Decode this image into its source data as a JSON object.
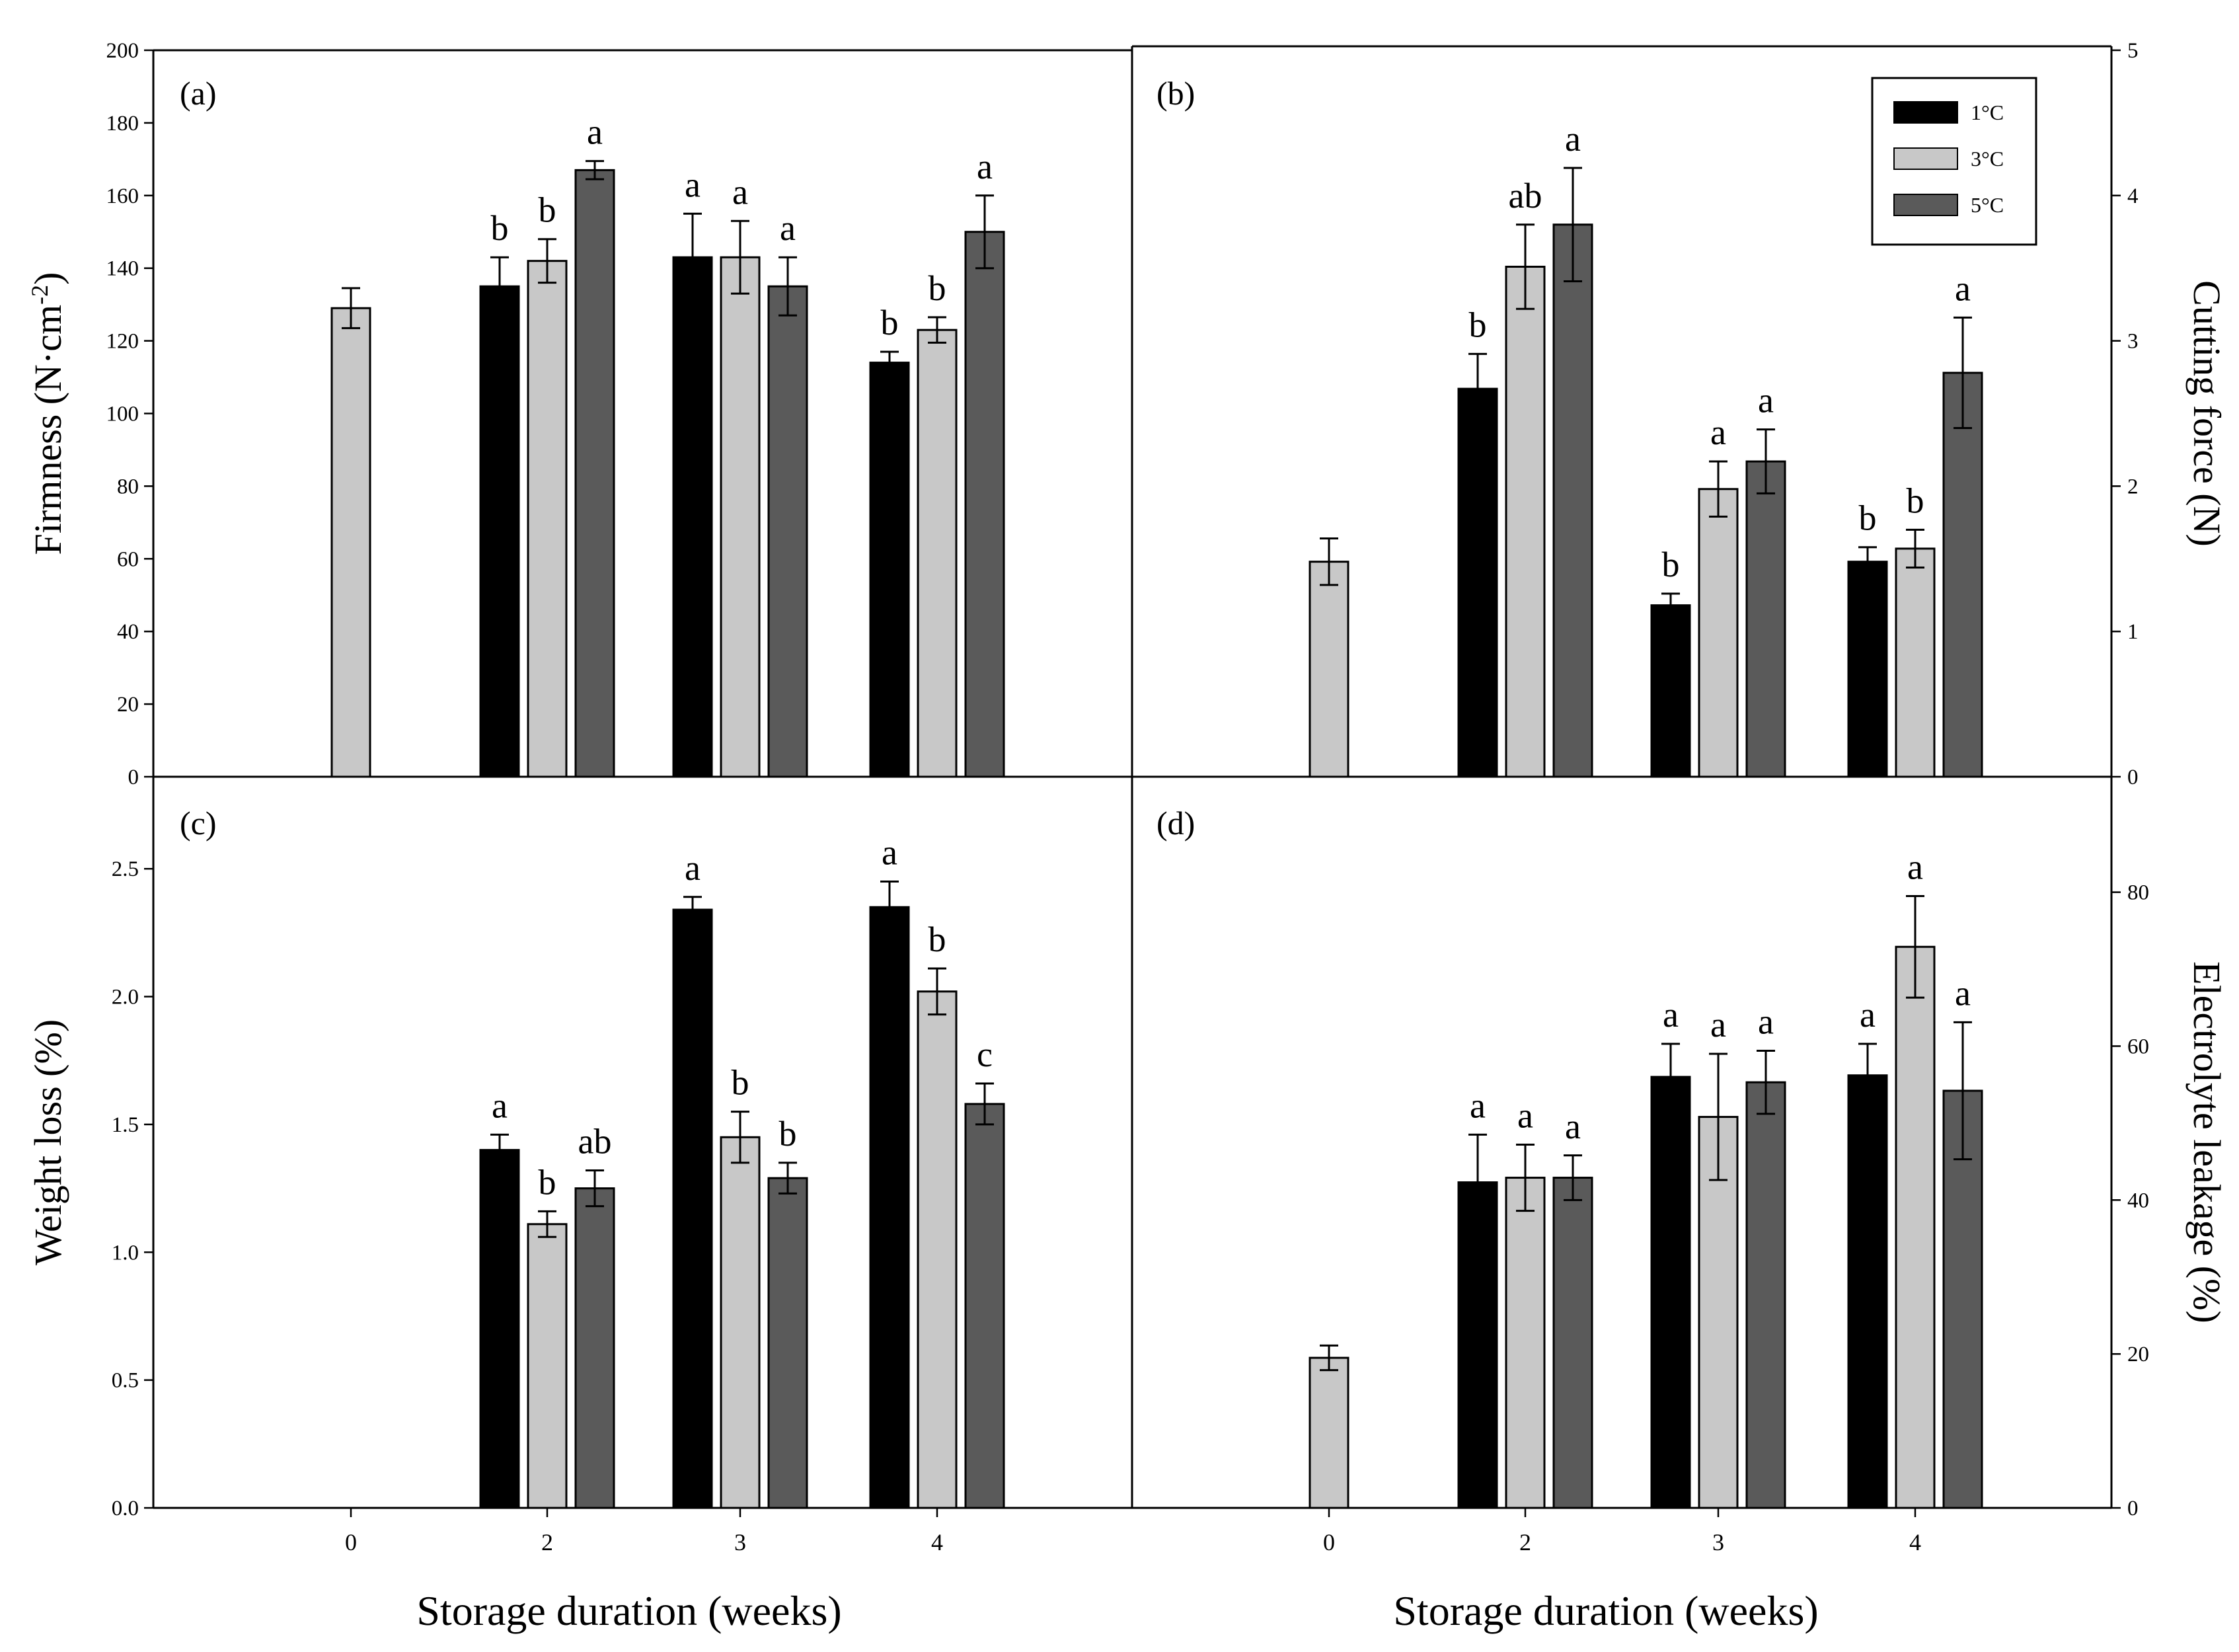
{
  "chart_data": {
    "type": "bar",
    "layout": "2x2 grid of grouped bar charts with error bars",
    "legend": {
      "placement": "top-right of panel (b)",
      "entries": [
        {
          "name": "1°C",
          "color": "#000000"
        },
        {
          "name": "3°C",
          "color": "#c8c8c8"
        },
        {
          "name": "5°C",
          "color": "#5a5a5a"
        }
      ]
    },
    "xlabel_bottom_left": "Storage duration (weeks)",
    "xlabel_bottom_right": "Storage duration (weeks)",
    "categories": [
      "0",
      "2",
      "3",
      "4"
    ],
    "panels": [
      {
        "id": "a",
        "label": "(a)",
        "ylabel": "Firmness (N·cm⁻²)",
        "ylabel_text": "Firmness (N·cm",
        "ylabel_sup": "-2",
        "ylabel_close": ")",
        "axis_side": "left",
        "ylim": [
          0,
          200
        ],
        "yticks": [
          {
            "value": 0,
            "label": "0"
          },
          {
            "value": 20,
            "label": "20"
          },
          {
            "value": 40,
            "label": "40"
          },
          {
            "value": 60,
            "label": "60"
          },
          {
            "value": 80,
            "label": "80"
          },
          {
            "value": 100,
            "label": "100"
          },
          {
            "value": 120,
            "label": "120"
          },
          {
            "value": 140,
            "label": "140"
          },
          {
            "value": 160,
            "label": "160"
          },
          {
            "value": 180,
            "label": "180"
          },
          {
            "value": 200,
            "label": "200"
          }
        ],
        "bars": [
          {
            "week": "0",
            "series": "3°C",
            "value": 129,
            "error": 5.5,
            "letter": ""
          },
          {
            "week": "2",
            "series": "1°C",
            "value": 135,
            "error": 8,
            "letter": "b"
          },
          {
            "week": "2",
            "series": "3°C",
            "value": 142,
            "error": 6,
            "letter": "b"
          },
          {
            "week": "2",
            "series": "5°C",
            "value": 167,
            "error": 2.5,
            "letter": "a"
          },
          {
            "week": "3",
            "series": "1°C",
            "value": 143,
            "error": 12,
            "letter": "a"
          },
          {
            "week": "3",
            "series": "3°C",
            "value": 143,
            "error": 10,
            "letter": "a"
          },
          {
            "week": "3",
            "series": "5°C",
            "value": 135,
            "error": 8,
            "letter": "a"
          },
          {
            "week": "4",
            "series": "1°C",
            "value": 114,
            "error": 3,
            "letter": "b"
          },
          {
            "week": "4",
            "series": "3°C",
            "value": 123,
            "error": 3.5,
            "letter": "b"
          },
          {
            "week": "4",
            "series": "5°C",
            "value": 150,
            "error": 10,
            "letter": "a"
          }
        ]
      },
      {
        "id": "b",
        "label": "(b)",
        "ylabel": "Cutting force (N)",
        "axis_side": "right",
        "ylim": [
          0,
          5
        ],
        "yticks": [
          {
            "value": 0,
            "label": "0"
          },
          {
            "value": 1,
            "label": "1"
          },
          {
            "value": 2,
            "label": "2"
          },
          {
            "value": 3,
            "label": "3"
          },
          {
            "value": 4,
            "label": "4"
          },
          {
            "value": 5,
            "label": "5"
          }
        ],
        "bars": [
          {
            "week": "0",
            "series": "3°C",
            "value": 1.48,
            "error": 0.16,
            "letter": ""
          },
          {
            "week": "2",
            "series": "1°C",
            "value": 2.67,
            "error": 0.24,
            "letter": "b"
          },
          {
            "week": "2",
            "series": "3°C",
            "value": 3.51,
            "error": 0.29,
            "letter": "ab"
          },
          {
            "week": "2",
            "series": "5°C",
            "value": 3.8,
            "error": 0.39,
            "letter": "a"
          },
          {
            "week": "3",
            "series": "1°C",
            "value": 1.18,
            "error": 0.08,
            "letter": "b"
          },
          {
            "week": "3",
            "series": "3°C",
            "value": 1.98,
            "error": 0.19,
            "letter": "a"
          },
          {
            "week": "3",
            "series": "5°C",
            "value": 2.17,
            "error": 0.22,
            "letter": "a"
          },
          {
            "week": "4",
            "series": "1°C",
            "value": 1.48,
            "error": 0.1,
            "letter": "b"
          },
          {
            "week": "4",
            "series": "3°C",
            "value": 1.57,
            "error": 0.13,
            "letter": "b"
          },
          {
            "week": "4",
            "series": "5°C",
            "value": 2.78,
            "error": 0.38,
            "letter": "a"
          }
        ]
      },
      {
        "id": "c",
        "label": "(c)",
        "ylabel": "Weight loss (%)",
        "axis_side": "left",
        "ylim": [
          0,
          2.86
        ],
        "yticks": [
          {
            "value": 0,
            "label": "0.0"
          },
          {
            "value": 0.5,
            "label": "0.5"
          },
          {
            "value": 1.0,
            "label": "1.0"
          },
          {
            "value": 1.5,
            "label": "1.5"
          },
          {
            "value": 2.0,
            "label": "2.0"
          },
          {
            "value": 2.5,
            "label": "2.5"
          }
        ],
        "bars": [
          {
            "week": "2",
            "series": "1°C",
            "value": 1.4,
            "error": 0.06,
            "letter": "a"
          },
          {
            "week": "2",
            "series": "3°C",
            "value": 1.11,
            "error": 0.05,
            "letter": "b"
          },
          {
            "week": "2",
            "series": "5°C",
            "value": 1.25,
            "error": 0.07,
            "letter": "ab"
          },
          {
            "week": "3",
            "series": "1°C",
            "value": 2.34,
            "error": 0.05,
            "letter": "a"
          },
          {
            "week": "3",
            "series": "3°C",
            "value": 1.45,
            "error": 0.1,
            "letter": "b"
          },
          {
            "week": "3",
            "series": "5°C",
            "value": 1.29,
            "error": 0.06,
            "letter": "b"
          },
          {
            "week": "4",
            "series": "1°C",
            "value": 2.35,
            "error": 0.1,
            "letter": "a"
          },
          {
            "week": "4",
            "series": "3°C",
            "value": 2.02,
            "error": 0.09,
            "letter": "b"
          },
          {
            "week": "4",
            "series": "5°C",
            "value": 1.58,
            "error": 0.08,
            "letter": "c"
          }
        ]
      },
      {
        "id": "d",
        "label": "(d)",
        "ylabel": "Electrolyte leakage (%)",
        "axis_side": "right",
        "ylim": [
          0,
          95
        ],
        "yticks": [
          {
            "value": 0,
            "label": "0"
          },
          {
            "value": 20,
            "label": "20"
          },
          {
            "value": 40,
            "label": "40"
          },
          {
            "value": 60,
            "label": "60"
          },
          {
            "value": 80,
            "label": "80"
          }
        ],
        "bars": [
          {
            "week": "0",
            "series": "3°C",
            "value": 19.5,
            "error": 1.6,
            "letter": ""
          },
          {
            "week": "2",
            "series": "1°C",
            "value": 42.3,
            "error": 6.2,
            "letter": "a"
          },
          {
            "week": "2",
            "series": "3°C",
            "value": 42.9,
            "error": 4.3,
            "letter": "a"
          },
          {
            "week": "2",
            "series": "5°C",
            "value": 42.9,
            "error": 2.9,
            "letter": "a"
          },
          {
            "week": "3",
            "series": "1°C",
            "value": 56,
            "error": 4.3,
            "letter": "a"
          },
          {
            "week": "3",
            "series": "3°C",
            "value": 50.8,
            "error": 8.2,
            "letter": "a"
          },
          {
            "week": "3",
            "series": "5°C",
            "value": 55.3,
            "error": 4.1,
            "letter": "a"
          },
          {
            "week": "4",
            "series": "1°C",
            "value": 56.2,
            "error": 4.1,
            "letter": "a"
          },
          {
            "week": "4",
            "series": "3°C",
            "value": 72.9,
            "error": 6.6,
            "letter": "a"
          },
          {
            "week": "4",
            "series": "5°C",
            "value": 54.2,
            "error": 8.9,
            "letter": "a"
          }
        ]
      }
    ]
  }
}
